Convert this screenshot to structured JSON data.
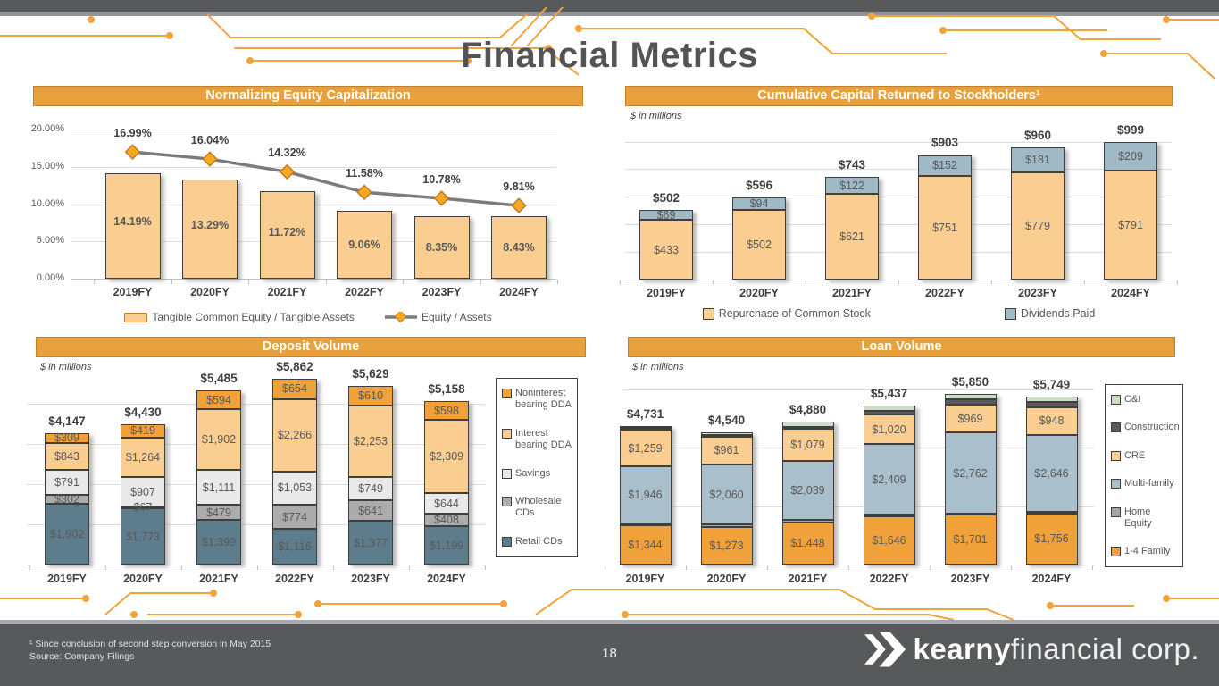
{
  "slide": {
    "title": "Financial Metrics",
    "units_label": "$ in millions",
    "page_number": "18",
    "footnotes": [
      "¹ Since conclusion of second step conversion in May 2015",
      "Source: Company Filings"
    ],
    "logo": {
      "brand_bold": "kearny",
      "brand_light": "financial corp."
    },
    "colors": {
      "accent_orange": "#E8A13C",
      "circuit_orange": "#F2A33C",
      "footer_gray": "#58595B",
      "tan": "#FACD91",
      "orange": "#F0A139",
      "steel_blue": "#5D7D8D",
      "light_blue": "#A9C0CC",
      "dividend_blue": "#9FB9C6"
    }
  },
  "chart_data": [
    {
      "id": "equity",
      "type": "combo-bar-line",
      "title": "Normalizing Equity Capitalization",
      "categories": [
        "2019FY",
        "2020FY",
        "2021FY",
        "2022FY",
        "2023FY",
        "2024FY"
      ],
      "bar_series": {
        "name": "Tangible Common Equity / Tangible Assets",
        "color": "#FACD91",
        "values": [
          14.19,
          13.29,
          11.72,
          9.06,
          8.35,
          8.43
        ]
      },
      "line_series": {
        "name": "Equity / Assets",
        "color": "#7C7C7C",
        "marker_color": "#F7A823",
        "values": [
          16.99,
          16.04,
          14.32,
          11.58,
          10.78,
          9.81
        ]
      },
      "y_ticks": [
        "0.00%",
        "5.00%",
        "10.00%",
        "15.00%",
        "20.00%"
      ],
      "ylim": [
        0,
        20
      ],
      "legend_position": "bottom"
    },
    {
      "id": "capital",
      "type": "stacked-bar",
      "title": "Cumulative Capital Returned to Stockholders¹",
      "units": "$ in millions",
      "categories": [
        "2019FY",
        "2020FY",
        "2021FY",
        "2022FY",
        "2023FY",
        "2024FY"
      ],
      "series": [
        {
          "name": "Repurchase of Common Stock",
          "color": "#FACD91",
          "values": [
            433,
            502,
            621,
            751,
            779,
            791
          ]
        },
        {
          "name": "Dividends Paid",
          "color": "#9FB9C6",
          "values": [
            69,
            94,
            122,
            152,
            181,
            209
          ]
        }
      ],
      "totals": [
        502,
        596,
        743,
        903,
        960,
        999
      ],
      "legend_position": "bottom"
    },
    {
      "id": "deposit",
      "type": "stacked-bar",
      "title": "Deposit Volume",
      "units": "$ in millions",
      "categories": [
        "2019FY",
        "2020FY",
        "2021FY",
        "2022FY",
        "2023FY",
        "2024FY"
      ],
      "series": [
        {
          "name": "Retail CDs",
          "color": "#5D7D8D",
          "values": [
            1902,
            1773,
            1399,
            1116,
            1377,
            1199
          ]
        },
        {
          "name": "Wholesale CDs",
          "color": "#ACACAC",
          "values": [
            302,
            67,
            479,
            774,
            641,
            408
          ]
        },
        {
          "name": "Savings",
          "color": "#E9E9E9",
          "values": [
            791,
            907,
            1111,
            1053,
            749,
            644
          ]
        },
        {
          "name": "Interest bearing DDA",
          "color": "#FACD91",
          "values": [
            843,
            1264,
            1902,
            2266,
            2253,
            2309
          ]
        },
        {
          "name": "Noninterest bearing DDA",
          "color": "#F0A139",
          "values": [
            309,
            419,
            594,
            654,
            610,
            598
          ]
        }
      ],
      "totals": [
        4147,
        4430,
        5485,
        5862,
        5629,
        5158
      ],
      "legend_position": "right",
      "legend_labels": [
        "Noninterest bearing DDA",
        "Interest bearing DDA",
        "Savings",
        "Wholesale CDs",
        "Retail CDs"
      ]
    },
    {
      "id": "loan",
      "type": "stacked-bar",
      "title": "Loan Volume",
      "units": "$ in millions",
      "categories": [
        "2019FY",
        "2020FY",
        "2021FY",
        "2022FY",
        "2023FY",
        "2024FY"
      ],
      "series": [
        {
          "name": "1-4 Family",
          "color": "#F0A139",
          "values": [
            1344,
            1273,
            1448,
            1646,
            1701,
            1756
          ]
        },
        {
          "name": "Home Equity",
          "color": "#A6A6A6",
          "show_labels": false,
          "estimated": true,
          "values": [
            70,
            90,
            72,
            62,
            50,
            45
          ]
        },
        {
          "name": "Multi-family",
          "color": "#A9C0CC",
          "values": [
            1946,
            2060,
            2039,
            2409,
            2762,
            2646
          ]
        },
        {
          "name": "CRE",
          "color": "#FACD91",
          "values": [
            1259,
            961,
            1079,
            1020,
            969,
            948
          ]
        },
        {
          "name": "Construction",
          "color": "#5A5A5A",
          "show_labels": false,
          "estimated": true,
          "values": [
            72,
            64,
            82,
            120,
            180,
            174
          ]
        },
        {
          "name": "C&I",
          "color": "#CBDFC5",
          "show_labels": false,
          "estimated": true,
          "values": [
            40,
            92,
            160,
            180,
            188,
            180
          ]
        }
      ],
      "totals": [
        4731,
        4540,
        4880,
        5437,
        5850,
        5749
      ],
      "legend_position": "right",
      "legend_labels": [
        "C&I",
        "Construction",
        "CRE",
        "Multi-family",
        "Home Equity",
        "1-4 Family"
      ]
    }
  ]
}
